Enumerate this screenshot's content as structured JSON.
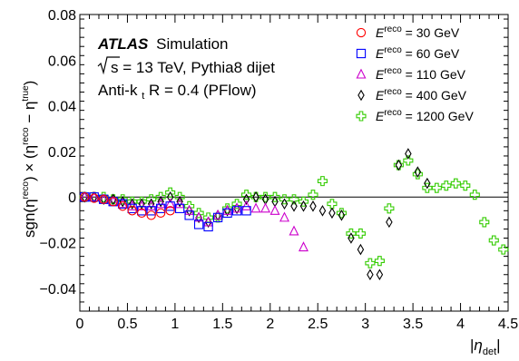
{
  "chart_data": {
    "type": "scatter",
    "title": "",
    "xlabel": "|η_det|",
    "ylabel": "sgn(η^reco) × (η^reco − η^true)",
    "xlim": [
      0,
      4.5
    ],
    "ylim": [
      -0.05,
      0.08
    ],
    "x_ticks": [
      "0",
      "0.5",
      "1",
      "1.5",
      "2",
      "2.5",
      "3",
      "3.5",
      "4",
      "4.5"
    ],
    "y_ticks": [
      "−0.04",
      "−0.02",
      "0",
      "0.02",
      "0.04",
      "0.06",
      "0.08"
    ],
    "grid": false,
    "legend_position": "top-right",
    "annotations": {
      "experiment": "ATLAS",
      "experiment_suffix": "Simulation",
      "energy": "s = 13 TeV, Pythia8 dijet",
      "algo_prefix": "Anti-k",
      "algo_sub": "t",
      "algo_suffix": " R = 0.4 (PFlow)"
    },
    "series": [
      {
        "name": "E^reco = 30 GeV",
        "label_suffix": " = 30 GeV",
        "marker": "circle",
        "color": "#ff0000",
        "x": [
          0.05,
          0.15,
          0.25,
          0.35,
          0.45,
          0.55,
          0.65,
          0.75,
          0.85,
          0.95
        ],
        "y": [
          0.0,
          -0.0005,
          -0.001,
          -0.002,
          -0.004,
          -0.006,
          -0.007,
          -0.008,
          -0.007,
          -0.006
        ]
      },
      {
        "name": "E^reco = 60 GeV",
        "label_suffix": " = 60 GeV",
        "marker": "square",
        "color": "#0000ff",
        "x": [
          0.05,
          0.15,
          0.25,
          0.35,
          0.45,
          0.55,
          0.65,
          0.75,
          0.85,
          0.95,
          1.05,
          1.15,
          1.25,
          1.35,
          1.45,
          1.55,
          1.65,
          1.75
        ],
        "y": [
          0.0,
          0.0,
          -0.001,
          -0.002,
          -0.003,
          -0.005,
          -0.006,
          -0.006,
          -0.005,
          -0.004,
          -0.005,
          -0.008,
          -0.012,
          -0.013,
          -0.009,
          -0.007,
          -0.006,
          -0.006
        ]
      },
      {
        "name": "E^reco = 110 GeV",
        "label_suffix": " = 110 GeV",
        "marker": "triangle",
        "color": "#cc00cc",
        "x": [
          0.05,
          0.15,
          0.25,
          0.35,
          0.45,
          0.55,
          0.65,
          0.75,
          0.85,
          0.95,
          1.05,
          1.15,
          1.25,
          1.35,
          1.45,
          1.55,
          1.65,
          1.75,
          1.85,
          1.95,
          2.05,
          2.15,
          2.25,
          2.35
        ],
        "y": [
          0.0,
          0.0,
          -0.001,
          -0.002,
          -0.003,
          -0.004,
          -0.004,
          -0.004,
          -0.003,
          -0.003,
          -0.003,
          -0.006,
          -0.009,
          -0.011,
          -0.008,
          -0.006,
          -0.005,
          -0.004,
          -0.005,
          -0.005,
          -0.006,
          -0.009,
          -0.015,
          -0.022
        ]
      },
      {
        "name": "E^reco = 400 GeV",
        "label_suffix": " = 400 GeV",
        "marker": "diamond",
        "color": "#000000",
        "x": [
          0.05,
          0.15,
          0.25,
          0.35,
          0.45,
          0.55,
          0.65,
          0.75,
          0.85,
          0.95,
          1.05,
          1.15,
          1.25,
          1.35,
          1.45,
          1.55,
          1.65,
          1.75,
          1.85,
          1.95,
          2.05,
          2.15,
          2.25,
          2.35,
          2.45,
          2.55,
          2.65,
          2.75,
          2.85,
          2.95,
          3.05,
          3.15,
          3.25,
          3.35,
          3.45,
          3.55,
          3.65
        ],
        "y": [
          0.0,
          0.0,
          -0.001,
          -0.001,
          -0.002,
          -0.003,
          -0.003,
          -0.003,
          -0.002,
          0.0,
          -0.002,
          -0.006,
          -0.009,
          -0.011,
          -0.008,
          -0.006,
          -0.005,
          -0.001,
          0.0,
          -0.001,
          -0.002,
          -0.003,
          -0.004,
          -0.004,
          -0.004,
          -0.006,
          -0.007,
          -0.008,
          -0.018,
          -0.023,
          -0.034,
          -0.034,
          -0.011,
          0.014,
          0.019,
          0.011,
          0.006
        ]
      },
      {
        "name": "E^reco = 1200 GeV",
        "label_suffix": " = 1200 GeV",
        "marker": "cross",
        "color": "#33cc00",
        "x": [
          0.05,
          0.15,
          0.25,
          0.35,
          0.45,
          0.55,
          0.65,
          0.75,
          0.85,
          0.95,
          1.05,
          1.15,
          1.25,
          1.35,
          1.45,
          1.55,
          1.65,
          1.75,
          1.85,
          1.95,
          2.05,
          2.15,
          2.25,
          2.35,
          2.45,
          2.55,
          2.65,
          2.75,
          2.85,
          2.95,
          3.05,
          3.15,
          3.25,
          3.35,
          3.45,
          3.55,
          3.65,
          3.75,
          3.85,
          3.95,
          4.05,
          4.15,
          4.25,
          4.35,
          4.45
        ],
        "y": [
          0.0,
          0.0,
          0.0,
          -0.001,
          -0.001,
          -0.002,
          -0.002,
          -0.001,
          0.0,
          0.002,
          0.0,
          -0.004,
          -0.007,
          -0.009,
          -0.009,
          -0.005,
          -0.003,
          0.001,
          0.0,
          0.0,
          0.0,
          -0.001,
          -0.001,
          -0.002,
          0.001,
          0.007,
          -0.003,
          -0.007,
          -0.016,
          -0.016,
          -0.029,
          -0.028,
          -0.005,
          0.014,
          0.016,
          0.01,
          0.004,
          0.004,
          0.005,
          0.006,
          0.005,
          0.001,
          -0.011,
          -0.019,
          -0.023
        ]
      }
    ]
  },
  "legend": {
    "e_label": "E",
    "e_sup": "reco"
  },
  "axis": {
    "xlabel_bar": "|",
    "xlabel_eta": "η",
    "xlabel_sub": "det",
    "ylabel": "sgn(η",
    "ylabel_sup1": "reco",
    "ylabel_mid": ") × (η",
    "ylabel_sup2": "reco",
    "ylabel_mid2": " − η",
    "ylabel_sup3": "true",
    "ylabel_end": ")"
  }
}
